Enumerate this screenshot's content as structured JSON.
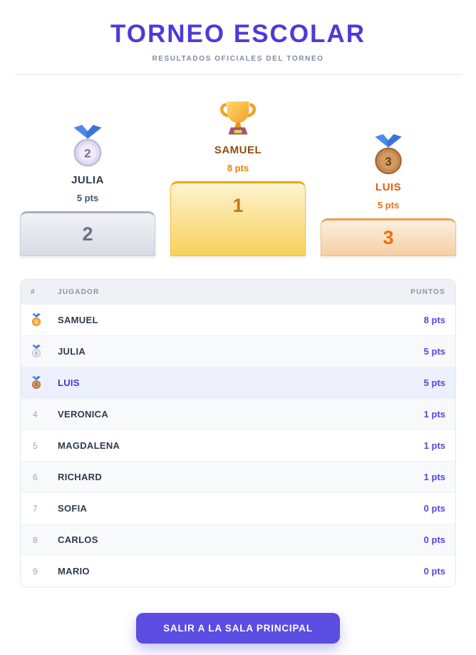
{
  "header": {
    "title": "TORNEO ESCOLAR",
    "subtitle": "RESULTADOS OFICIALES DEL TORNEO"
  },
  "podium": {
    "first": {
      "icon": "trophy-icon",
      "name": "SAMUEL",
      "points": "8 pts",
      "rank": "1"
    },
    "second": {
      "icon": "silver-medal-icon",
      "name": "JULIA",
      "points": "5 pts",
      "rank": "2"
    },
    "third": {
      "icon": "bronze-medal-icon",
      "name": "LUIS",
      "points": "5 pts",
      "rank": "3"
    }
  },
  "table": {
    "columns": {
      "rank": "#",
      "player": "JUGADOR",
      "points": "PUNTOS"
    },
    "rows": [
      {
        "rank": "1",
        "medal": "gold",
        "player": "SAMUEL",
        "points": "8 pts",
        "highlight": false
      },
      {
        "rank": "2",
        "medal": "silver",
        "player": "JULIA",
        "points": "5 pts",
        "highlight": false
      },
      {
        "rank": "3",
        "medal": "bronze",
        "player": "LUIS",
        "points": "5 pts",
        "highlight": true
      },
      {
        "rank": "4",
        "medal": null,
        "player": "VERONICA",
        "points": "1 pts",
        "highlight": false
      },
      {
        "rank": "5",
        "medal": null,
        "player": "MAGDALENA",
        "points": "1 pts",
        "highlight": false
      },
      {
        "rank": "6",
        "medal": null,
        "player": "RICHARD",
        "points": "1 pts",
        "highlight": false
      },
      {
        "rank": "7",
        "medal": null,
        "player": "SOFIA",
        "points": "0 pts",
        "highlight": false
      },
      {
        "rank": "8",
        "medal": null,
        "player": "CARLOS",
        "points": "0 pts",
        "highlight": false
      },
      {
        "rank": "9",
        "medal": null,
        "player": "MARIO",
        "points": "0 pts",
        "highlight": false
      }
    ]
  },
  "footer": {
    "exit_button_label": "SALIR A LA SALA PRINCIPAL"
  },
  "colors": {
    "accent": "#5646DD",
    "title": "#4C3BDA",
    "button": "#5B4CE2",
    "highlight_row": "#ECF0FC",
    "medals": {
      "gold": {
        "body": "#F5A63A",
        "rim": "#DE861E",
        "inner": "#F8BA55",
        "number": "#FFF4D6"
      },
      "silver": {
        "body": "#E2DAF0",
        "rim": "#C2B8D8",
        "inner": "#EFE9F8",
        "number": "#77738C"
      },
      "bronze": {
        "body": "#C68B52",
        "rim": "#A66936",
        "inner": "#D29A62",
        "number": "#663C14"
      },
      "ribbon_left": "#4E8BE8",
      "ribbon_right": "#3B74D8"
    },
    "trophy": {
      "cup_top": "#FFD966",
      "cup_bottom": "#F29E2E",
      "handle": "#EFA22C",
      "base": "#9C5A66",
      "plaque": "#F2CC5A"
    }
  }
}
